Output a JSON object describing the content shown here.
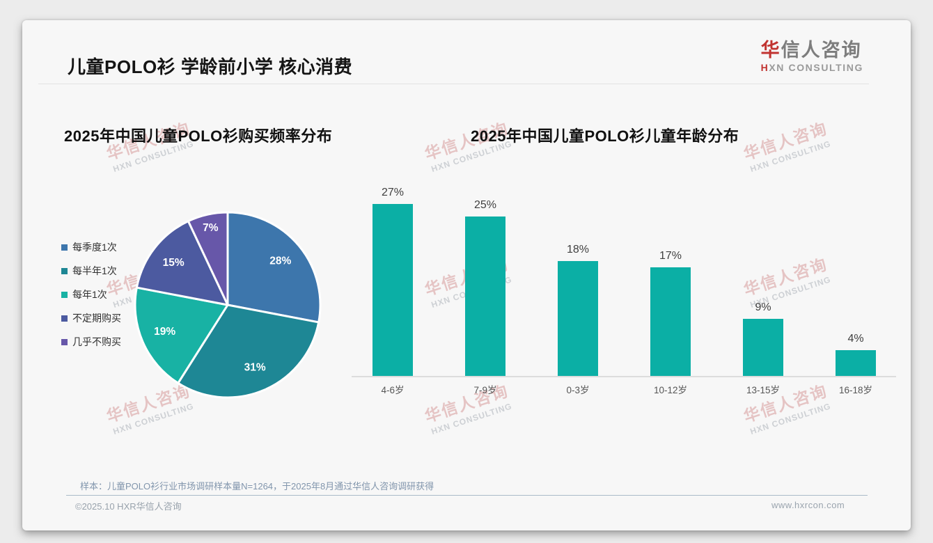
{
  "header": {
    "title": "儿童POLO衫 学龄前小学 核心消费",
    "logo_cn_accent": "华",
    "logo_cn_rest": "信人咨询",
    "logo_en_accent": "H",
    "logo_en_rest": "XN CONSULTING"
  },
  "watermark": {
    "cn": "华信人咨询",
    "en": "HXN CONSULTING"
  },
  "chart_data": [
    {
      "type": "pie",
      "title": "2025年中国儿童POLO衫购买频率分布",
      "labels": [
        "每季度1次",
        "每半年1次",
        "每年1次",
        "不定期购买",
        "几乎不购买"
      ],
      "values": [
        28,
        31,
        19,
        15,
        7
      ],
      "unit": "%",
      "colors": [
        "#3D76AC",
        "#1E8795",
        "#18B2A4",
        "#4C5AA0",
        "#6757A9"
      ],
      "legend_position": "left",
      "label_style": "inside-white",
      "start_angle_deg": 0,
      "direction": "clockwise"
    },
    {
      "type": "bar",
      "title": "2025年中国儿童POLO衫儿童年龄分布",
      "categories": [
        "4-6岁",
        "7-9岁",
        "0-3岁",
        "10-12岁",
        "13-15岁",
        "16-18岁"
      ],
      "values": [
        27,
        25,
        18,
        17,
        9,
        4
      ],
      "unit": "%",
      "bar_color": "#0BAFA5",
      "ylim": [
        0,
        30
      ],
      "gridlines": false,
      "data_labels": "above-bars",
      "axis_line_color": "#DCDCDC"
    }
  ],
  "footer": {
    "note": "样本：儿童POLO衫行业市场调研样本量N=1264，于2025年8月通过华信人咨询调研获得",
    "copyright": "©2025.10 HXR华信人咨询",
    "website": "www.hxrcon.com"
  },
  "colors": {
    "accent_red": "#C13330",
    "card_bg": "#F7F7F7",
    "page_bg": "#ECECEC"
  }
}
